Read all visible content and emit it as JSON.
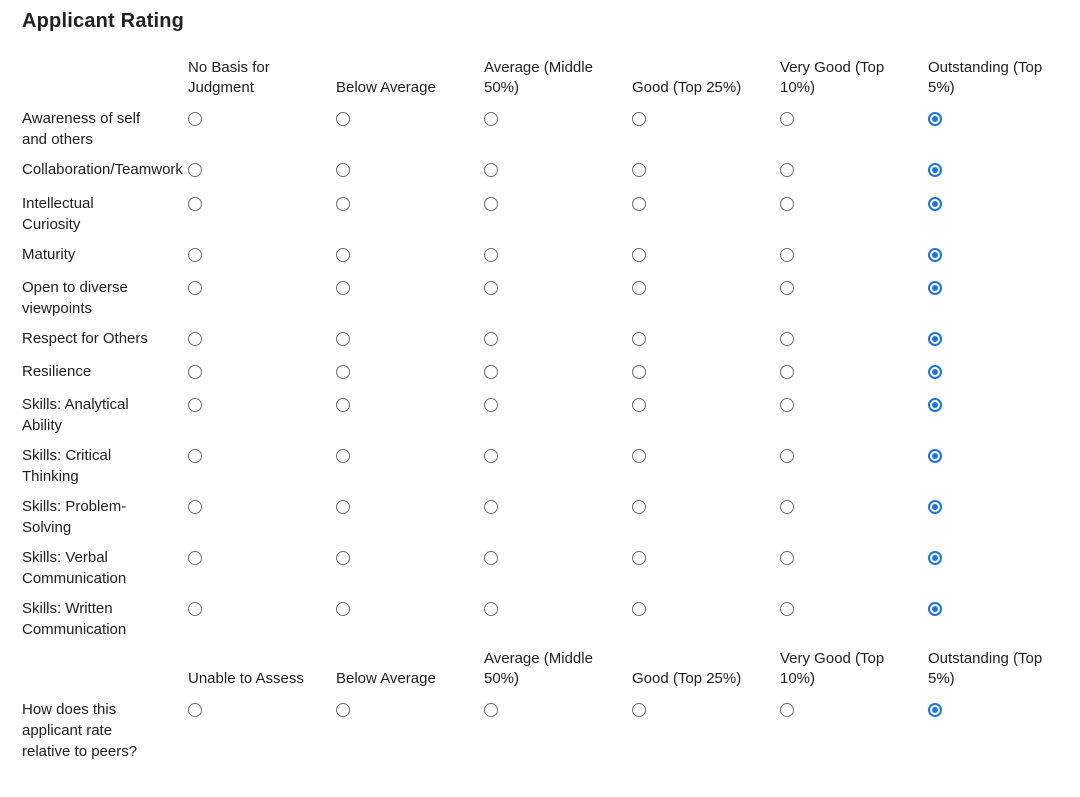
{
  "title": "Applicant Rating",
  "colors": {
    "accent": "#1a73e8",
    "radio_border": "#6e6e6e",
    "text": "#202124"
  },
  "matrices": [
    {
      "name": "applicant-rating-matrix",
      "columns": [
        "No Basis for Judgment",
        "Below Average",
        "Average (Middle 50%)",
        "Good (Top 25%)",
        "Very Good (Top 10%)",
        "Outstanding (Top 5%)"
      ],
      "rows": [
        {
          "label": "Awareness of self and others",
          "selected": 5
        },
        {
          "label": "Collaboration/Teamwork",
          "selected": 5
        },
        {
          "label": "Intellectual Curiosity",
          "selected": 5,
          "gap_before": true
        },
        {
          "label": "Maturity",
          "selected": 5
        },
        {
          "label": "Open to diverse viewpoints",
          "selected": 5
        },
        {
          "label": "Respect for Others",
          "selected": 5
        },
        {
          "label": "Resilience",
          "selected": 5
        },
        {
          "label": "Skills: Analytical Ability",
          "selected": 5
        },
        {
          "label": "Skills: Critical Thinking",
          "selected": 5
        },
        {
          "label": "Skills: Problem-Solving",
          "selected": 5
        },
        {
          "label": "Skills: Verbal Communication",
          "selected": 5
        },
        {
          "label": "Skills: Written Communication",
          "selected": 5
        }
      ]
    },
    {
      "name": "peer-comparison-matrix",
      "columns": [
        "Unable to Assess",
        "Below Average",
        "Average (Middle 50%)",
        "Good (Top 25%)",
        "Very Good (Top 10%)",
        "Outstanding (Top 5%)"
      ],
      "rows": [
        {
          "label": "How does this applicant rate relative to peers?",
          "selected": 5
        }
      ]
    }
  ]
}
